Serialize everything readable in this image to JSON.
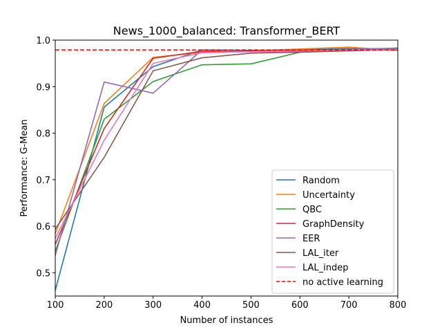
{
  "chart_data": {
    "type": "line",
    "title": "News_1000_balanced: Transformer_BERT",
    "xlabel": "Number of instances",
    "ylabel": "Performance: G-Mean",
    "xlim": [
      100,
      800
    ],
    "ylim": [
      0.45,
      1.0
    ],
    "xticks": [
      100,
      200,
      300,
      400,
      500,
      600,
      700,
      800
    ],
    "yticks": [
      0.5,
      0.6,
      0.7,
      0.8,
      0.9,
      1.0
    ],
    "grid": false,
    "legend_position": "lower-right",
    "x": [
      100,
      200,
      300,
      400,
      500,
      600,
      700,
      800
    ],
    "series": [
      {
        "name": "Random",
        "color": "#1f77b4",
        "style": "solid",
        "values": [
          0.462,
          0.856,
          0.943,
          0.979,
          0.978,
          0.979,
          0.982,
          0.981
        ]
      },
      {
        "name": "Uncertainty",
        "color": "#ff7f0e",
        "style": "solid",
        "values": [
          0.584,
          0.864,
          0.963,
          0.974,
          0.977,
          0.981,
          0.985,
          0.978
        ]
      },
      {
        "name": "QBC",
        "color": "#2ca02c",
        "style": "solid",
        "values": [
          0.546,
          0.83,
          0.911,
          0.947,
          0.949,
          0.974,
          0.978,
          0.983
        ]
      },
      {
        "name": "GraphDensity",
        "color": "#d62728",
        "style": "solid",
        "values": [
          0.561,
          0.81,
          0.961,
          0.976,
          0.977,
          0.978,
          0.979,
          0.979
        ]
      },
      {
        "name": "EER",
        "color": "#9467bd",
        "style": "solid",
        "values": [
          0.537,
          0.91,
          0.886,
          0.979,
          0.975,
          0.976,
          0.98,
          0.983
        ]
      },
      {
        "name": "LAL_iter",
        "color": "#8c564b",
        "style": "solid",
        "values": [
          0.594,
          0.748,
          0.934,
          0.962,
          0.972,
          0.974,
          0.977,
          0.98
        ]
      },
      {
        "name": "LAL_indep",
        "color": "#e377c2",
        "style": "solid",
        "values": [
          0.574,
          0.785,
          0.95,
          0.973,
          0.975,
          0.977,
          0.979,
          0.98
        ]
      }
    ],
    "reference_line": {
      "name": "no active learning",
      "color": "#ff0000",
      "style": "dashed",
      "value": 0.979
    }
  }
}
